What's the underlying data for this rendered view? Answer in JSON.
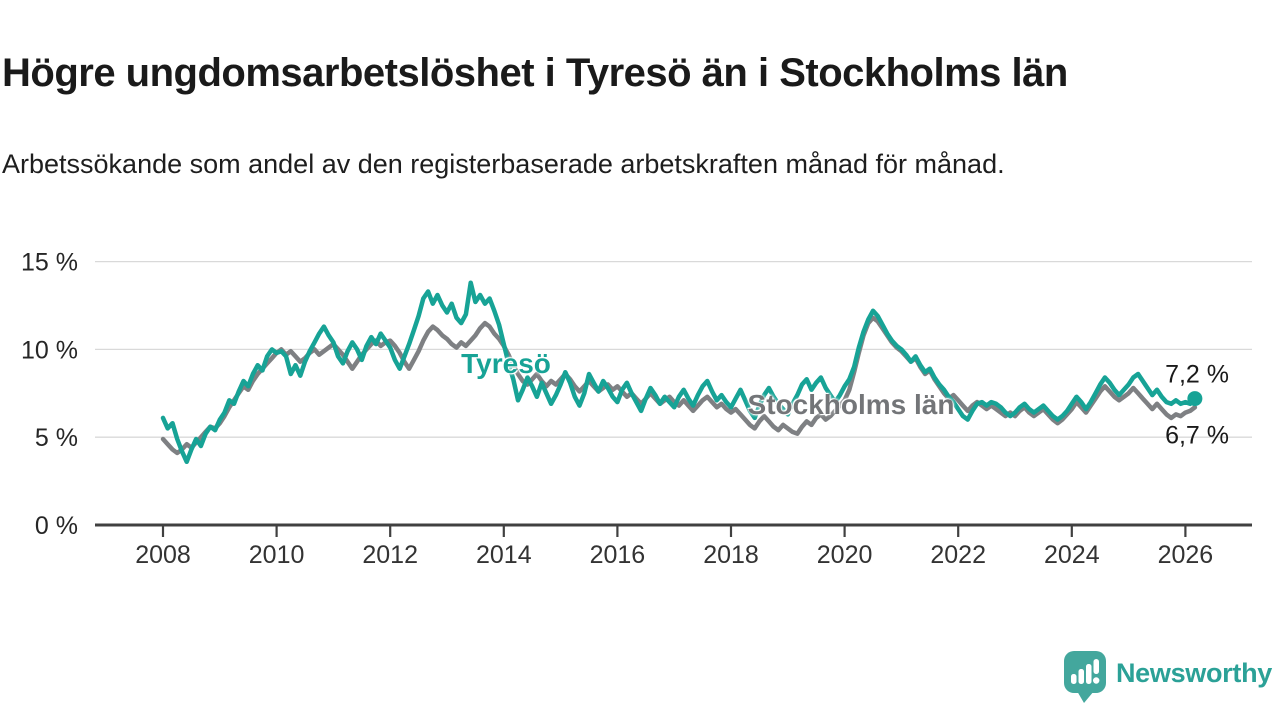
{
  "header": {
    "title": "Högre ungdomsarbetslöshet i Tyresö än i Stockholms län",
    "subtitle": "Arbetssökande som andel av den registerbaserade arbetskraften månad för månad."
  },
  "chart_data": {
    "type": "line",
    "unit": "%",
    "grid": true,
    "x_start_year": 2008,
    "x_step_years": 0.0833333,
    "xlim": [
      2006.8,
      2027.2
    ],
    "ylim": [
      0,
      15.5
    ],
    "y_ticks": [
      {
        "value": 0,
        "label": "0 %"
      },
      {
        "value": 5,
        "label": "5 %"
      },
      {
        "value": 10,
        "label": "10 %"
      },
      {
        "value": 15,
        "label": "15 %"
      }
    ],
    "x_ticks": [
      "2008",
      "2010",
      "2012",
      "2014",
      "2016",
      "2018",
      "2020",
      "2022",
      "2024",
      "2026"
    ],
    "series": [
      {
        "name": "Tyresö",
        "color": "#17a396",
        "end_label": "7,2 %",
        "end_dot": true,
        "values": [
          6.1,
          5.5,
          5.8,
          4.9,
          4.2,
          3.6,
          4.3,
          4.9,
          4.5,
          5.2,
          5.6,
          5.4,
          6.0,
          6.4,
          7.1,
          6.9,
          7.6,
          8.2,
          7.9,
          8.6,
          9.1,
          8.8,
          9.6,
          10.0,
          9.8,
          9.9,
          9.6,
          8.6,
          9.1,
          8.5,
          9.3,
          9.9,
          10.4,
          10.9,
          11.3,
          10.8,
          10.4,
          9.6,
          9.2,
          9.9,
          10.4,
          10.0,
          9.4,
          10.2,
          10.7,
          10.3,
          10.9,
          10.5,
          10.1,
          9.4,
          8.9,
          9.6,
          10.3,
          11.1,
          11.9,
          12.9,
          13.3,
          12.6,
          13.1,
          12.5,
          12.1,
          12.6,
          11.8,
          11.5,
          12.0,
          13.8,
          12.7,
          13.1,
          12.6,
          12.9,
          12.2,
          11.4,
          10.3,
          9.2,
          8.3,
          7.1,
          7.7,
          8.4,
          7.9,
          7.3,
          8.1,
          7.5,
          6.9,
          7.4,
          8.0,
          8.7,
          8.1,
          7.3,
          6.8,
          7.5,
          8.6,
          8.1,
          7.6,
          8.2,
          7.8,
          7.3,
          7.0,
          7.7,
          8.1,
          7.5,
          7.0,
          6.5,
          7.2,
          7.8,
          7.4,
          6.9,
          7.3,
          7.0,
          6.7,
          7.3,
          7.7,
          7.2,
          6.8,
          7.4,
          7.9,
          8.2,
          7.6,
          7.1,
          7.4,
          7.0,
          6.7,
          7.2,
          7.7,
          7.1,
          6.5,
          6.1,
          6.8,
          7.4,
          7.8,
          7.3,
          6.9,
          6.6,
          6.3,
          6.9,
          7.4,
          8.0,
          8.3,
          7.7,
          8.1,
          8.4,
          7.8,
          7.4,
          7.0,
          7.4,
          7.9,
          8.3,
          9.0,
          10.1,
          11.0,
          11.7,
          12.2,
          11.9,
          11.4,
          10.9,
          10.5,
          10.2,
          10.0,
          9.7,
          9.3,
          9.6,
          9.1,
          8.7,
          8.9,
          8.4,
          8.0,
          7.7,
          7.3,
          7.0,
          6.6,
          6.2,
          6.0,
          6.5,
          6.9,
          7.0,
          6.8,
          7.0,
          6.9,
          6.7,
          6.4,
          6.2,
          6.4,
          6.7,
          6.9,
          6.6,
          6.4,
          6.6,
          6.8,
          6.5,
          6.2,
          6.0,
          6.2,
          6.5,
          6.9,
          7.3,
          7.0,
          6.6,
          7.0,
          7.5,
          8.0,
          8.4,
          8.1,
          7.7,
          7.4,
          7.7,
          8.0,
          8.4,
          8.6,
          8.2,
          7.8,
          7.4,
          7.7,
          7.3,
          7.0,
          6.9,
          7.1,
          6.9,
          7.0,
          6.9,
          7.2
        ]
      },
      {
        "name": "Stockholms län",
        "color": "#7e8083",
        "end_label": "6,7 %",
        "end_dot": false,
        "values": [
          4.9,
          4.6,
          4.3,
          4.1,
          4.3,
          4.6,
          4.4,
          4.7,
          5.0,
          5.3,
          5.6,
          5.5,
          5.8,
          6.2,
          6.7,
          7.1,
          7.5,
          7.9,
          7.7,
          8.2,
          8.6,
          8.9,
          9.2,
          9.5,
          9.8,
          10.0,
          9.7,
          9.9,
          9.6,
          9.3,
          9.5,
          9.8,
          10.0,
          9.7,
          9.9,
          10.1,
          10.3,
          10.0,
          9.7,
          9.3,
          8.9,
          9.3,
          9.7,
          10.0,
          10.3,
          10.5,
          10.2,
          10.4,
          10.5,
          10.2,
          9.8,
          9.3,
          8.9,
          9.4,
          9.9,
          10.5,
          11.0,
          11.3,
          11.1,
          10.8,
          10.6,
          10.3,
          10.1,
          10.4,
          10.2,
          10.5,
          10.8,
          11.2,
          11.5,
          11.3,
          10.9,
          10.6,
          10.2,
          9.7,
          9.1,
          8.6,
          8.2,
          8.0,
          8.3,
          8.6,
          8.2,
          7.9,
          8.2,
          8.0,
          8.3,
          8.6,
          8.3,
          7.9,
          7.6,
          7.9,
          8.2,
          7.9,
          7.6,
          7.8,
          8.0,
          7.7,
          7.9,
          7.6,
          7.3,
          7.5,
          7.2,
          6.9,
          7.2,
          7.5,
          7.2,
          6.9,
          7.1,
          7.3,
          7.0,
          6.8,
          7.1,
          6.8,
          6.5,
          6.8,
          7.1,
          7.3,
          7.0,
          6.7,
          6.9,
          6.6,
          6.4,
          6.6,
          6.3,
          6.0,
          5.7,
          5.5,
          5.9,
          6.2,
          5.9,
          5.6,
          5.4,
          5.7,
          5.5,
          5.3,
          5.2,
          5.6,
          5.9,
          5.7,
          6.1,
          6.3,
          6.0,
          6.2,
          6.5,
          6.8,
          7.1,
          7.7,
          8.7,
          9.8,
          10.8,
          11.5,
          11.8,
          11.6,
          11.2,
          10.8,
          10.4,
          10.1,
          9.9,
          9.6,
          9.3,
          9.5,
          9.0,
          8.6,
          8.8,
          8.3,
          7.9,
          7.5,
          7.2,
          7.4,
          7.1,
          6.8,
          6.5,
          6.8,
          7.0,
          6.8,
          6.6,
          6.8,
          6.6,
          6.4,
          6.2,
          6.4,
          6.2,
          6.5,
          6.7,
          6.4,
          6.2,
          6.4,
          6.6,
          6.3,
          6.0,
          5.8,
          6.0,
          6.3,
          6.6,
          7.0,
          6.7,
          6.4,
          6.8,
          7.2,
          7.6,
          7.9,
          7.6,
          7.3,
          7.1,
          7.3,
          7.5,
          7.8,
          7.5,
          7.2,
          6.9,
          6.6,
          6.9,
          6.6,
          6.3,
          6.1,
          6.3,
          6.2,
          6.4,
          6.5,
          6.7
        ]
      }
    ],
    "colors": {
      "grid": "#d9d9d9",
      "axis": "#404040",
      "tick_text": "#333333",
      "value_text": "#1a1a1a"
    }
  },
  "branding": {
    "logo_text": "Newsworthy",
    "logo_color": "#43a79d",
    "text_color": "#2ba197"
  }
}
